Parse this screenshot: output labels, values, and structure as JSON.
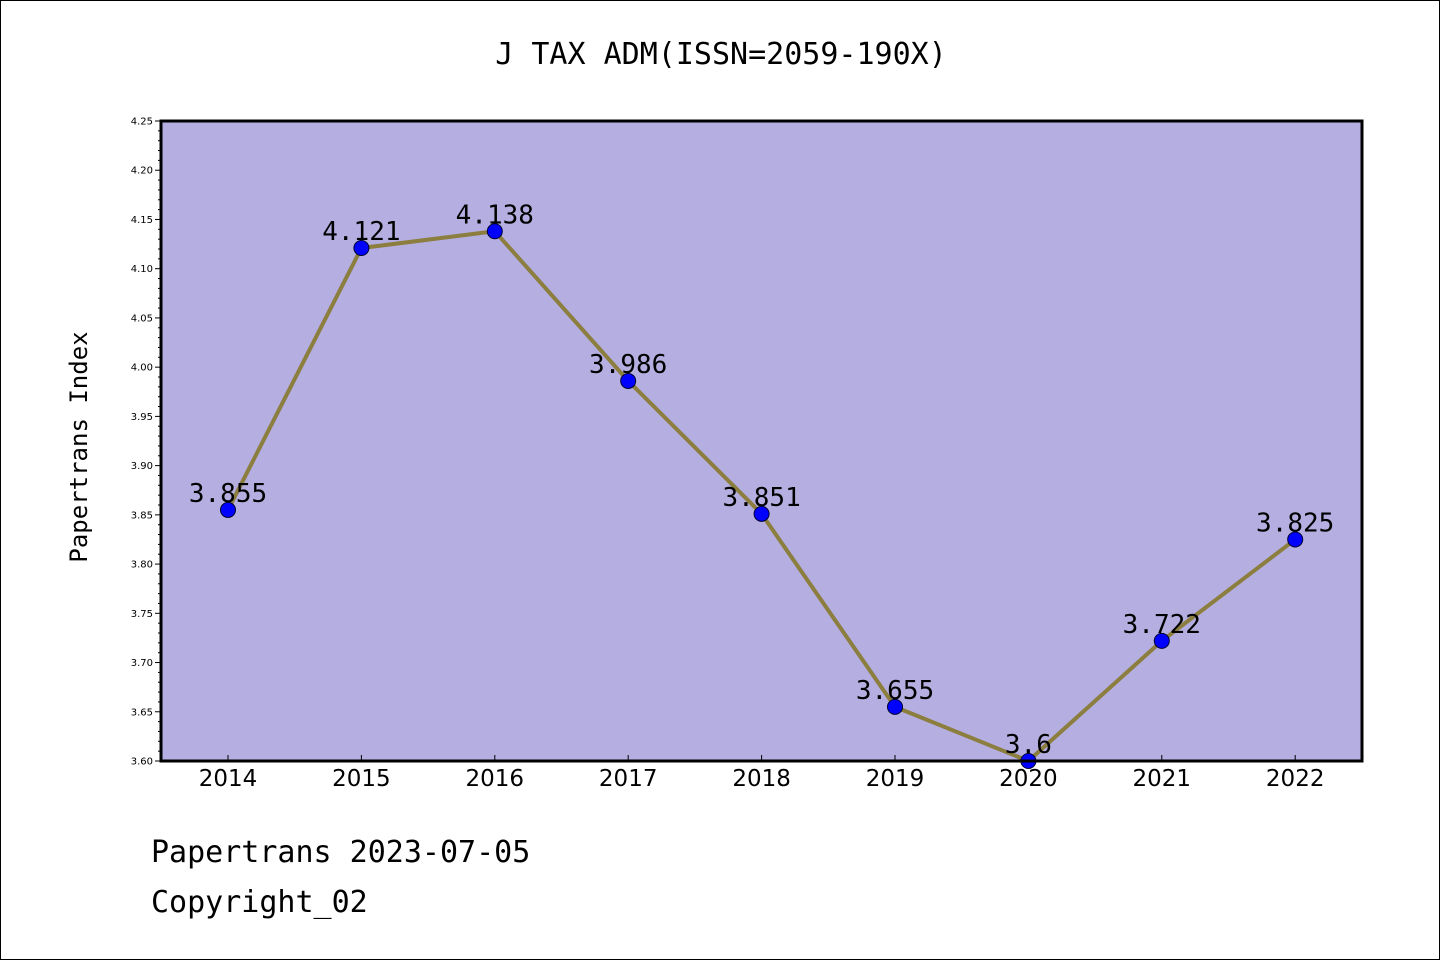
{
  "chart_data": {
    "type": "line",
    "title": "J TAX ADM(ISSN=2059-190X)",
    "xlabel": "",
    "ylabel": "Papertrans Index",
    "categories": [
      "2014",
      "2015",
      "2016",
      "2017",
      "2018",
      "2019",
      "2020",
      "2021",
      "2022"
    ],
    "series": [
      {
        "values": [
          3.855,
          4.121,
          4.138,
          3.986,
          3.851,
          3.655,
          3.6,
          3.722,
          3.825
        ],
        "labels": [
          "3.855",
          "4.121",
          "4.138",
          "3.986",
          "3.851",
          "3.655",
          "3.6",
          "3.722",
          "3.825"
        ]
      }
    ],
    "ylim": [
      3.6,
      4.25
    ],
    "yticks": [
      "3.60",
      "3.65",
      "3.70",
      "3.75",
      "3.80",
      "3.85",
      "3.90",
      "3.95",
      "4.00",
      "4.05",
      "4.10",
      "4.15",
      "4.20",
      "4.25"
    ],
    "grid": false,
    "legend": "none",
    "colors": {
      "plot_background": "#b5aee1",
      "line": "#8b7e3e",
      "marker": "#0000ff"
    }
  },
  "footer": {
    "date_line": "Papertrans 2023-07-05",
    "copyright": "Copyright_02"
  }
}
